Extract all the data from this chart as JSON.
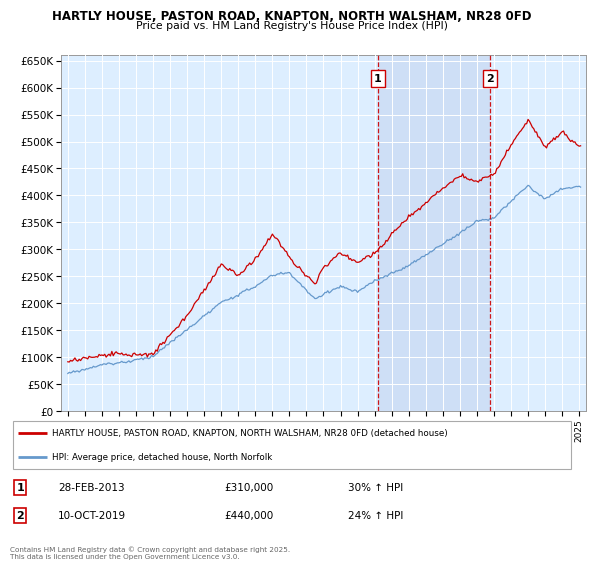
{
  "title1": "HARTLY HOUSE, PASTON ROAD, KNAPTON, NORTH WALSHAM, NR28 0FD",
  "title2": "Price paid vs. HM Land Registry's House Price Index (HPI)",
  "legend1": "HARTLY HOUSE, PASTON ROAD, KNAPTON, NORTH WALSHAM, NR28 0FD (detached house)",
  "legend2": "HPI: Average price, detached house, North Norfolk",
  "footnote": "Contains HM Land Registry data © Crown copyright and database right 2025.\nThis data is licensed under the Open Government Licence v3.0.",
  "marker1_label": "1",
  "marker1_date": "28-FEB-2013",
  "marker1_price": "£310,000",
  "marker1_hpi": "30% ↑ HPI",
  "marker1_x": 2013.17,
  "marker2_label": "2",
  "marker2_date": "10-OCT-2019",
  "marker2_price": "£440,000",
  "marker2_hpi": "24% ↑ HPI",
  "marker2_x": 2019.78,
  "hpi_color": "#6699cc",
  "price_color": "#cc0000",
  "vline_color": "#cc0000",
  "fill_between_color": "#ccddf5",
  "background_color": "#ddeeff",
  "ylim": [
    0,
    660000
  ],
  "xlim_start": 1994.6,
  "xlim_end": 2025.4
}
